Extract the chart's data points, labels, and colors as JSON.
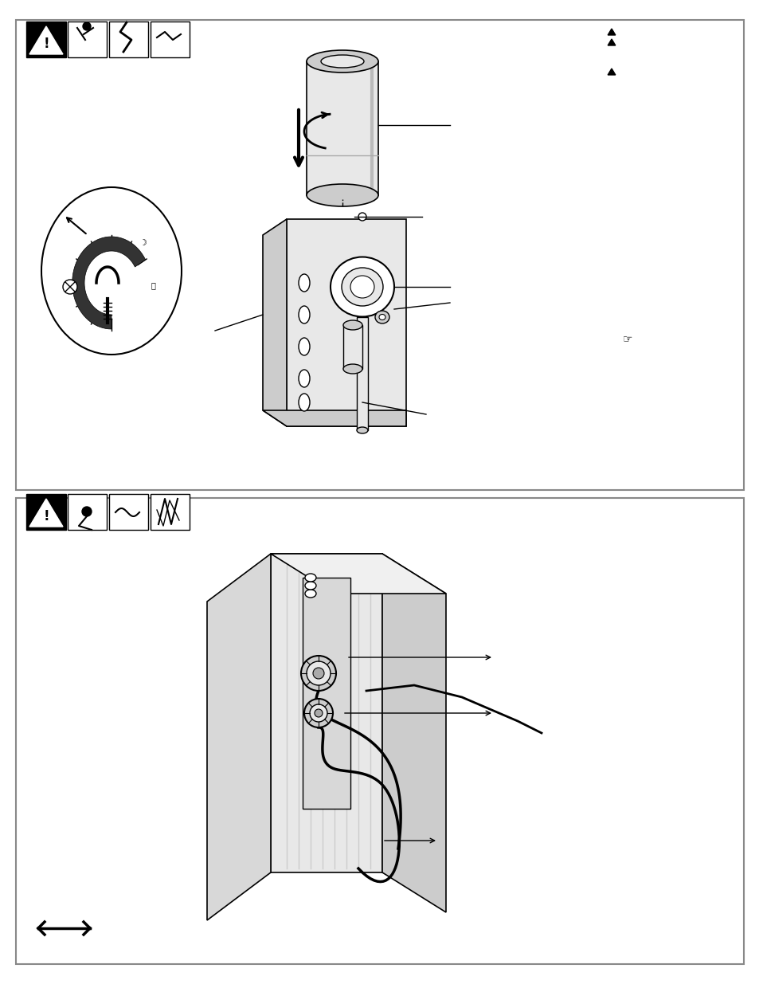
{
  "bg_color": "#ffffff",
  "border_color": "#aaaaaa",
  "lw": 1.2,
  "black": "#000000",
  "white": "#ffffff",
  "lgray": "#e8e8e8",
  "mgray": "#cccccc",
  "dgray": "#999999"
}
